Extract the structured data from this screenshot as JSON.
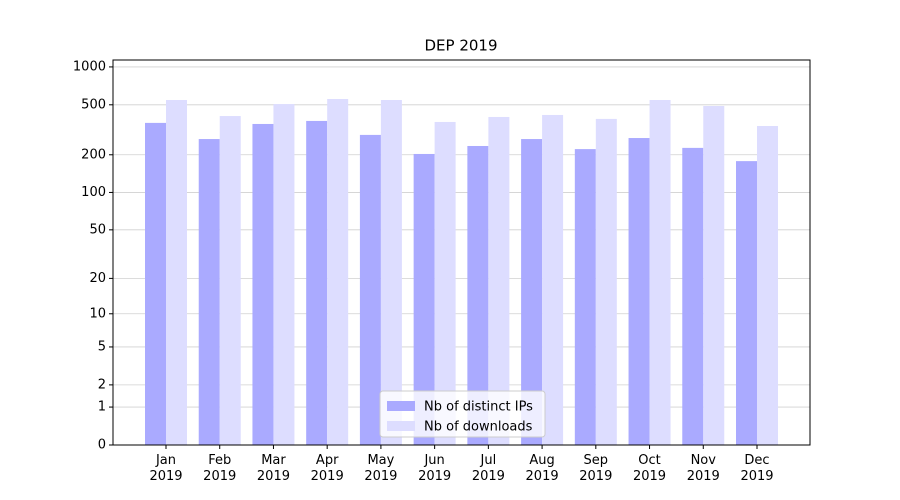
{
  "chart_data": {
    "type": "bar",
    "title": "DEP 2019",
    "categories": [
      "Jan 2019",
      "Feb 2019",
      "Mar 2019",
      "Apr 2019",
      "May 2019",
      "Jun 2019",
      "Jul 2019",
      "Aug 2019",
      "Sep 2019",
      "Oct 2019",
      "Nov 2019",
      "Dec 2019"
    ],
    "series": [
      {
        "name": "Nb of distinct IPs",
        "color": "#aaaaff",
        "values": [
          359,
          267,
          352,
          372,
          288,
          203,
          235,
          267,
          222,
          272,
          227,
          178
        ]
      },
      {
        "name": "Nb of downloads",
        "color": "#ddddff",
        "values": [
          546,
          407,
          507,
          556,
          546,
          365,
          400,
          415,
          386,
          546,
          489,
          339
        ]
      }
    ],
    "yscale": "log1p",
    "ylim": [
      0,
      1135
    ],
    "yticks": [
      0,
      1,
      2,
      5,
      10,
      20,
      50,
      100,
      200,
      500,
      1000
    ],
    "grid": true,
    "legend": "lower center"
  }
}
